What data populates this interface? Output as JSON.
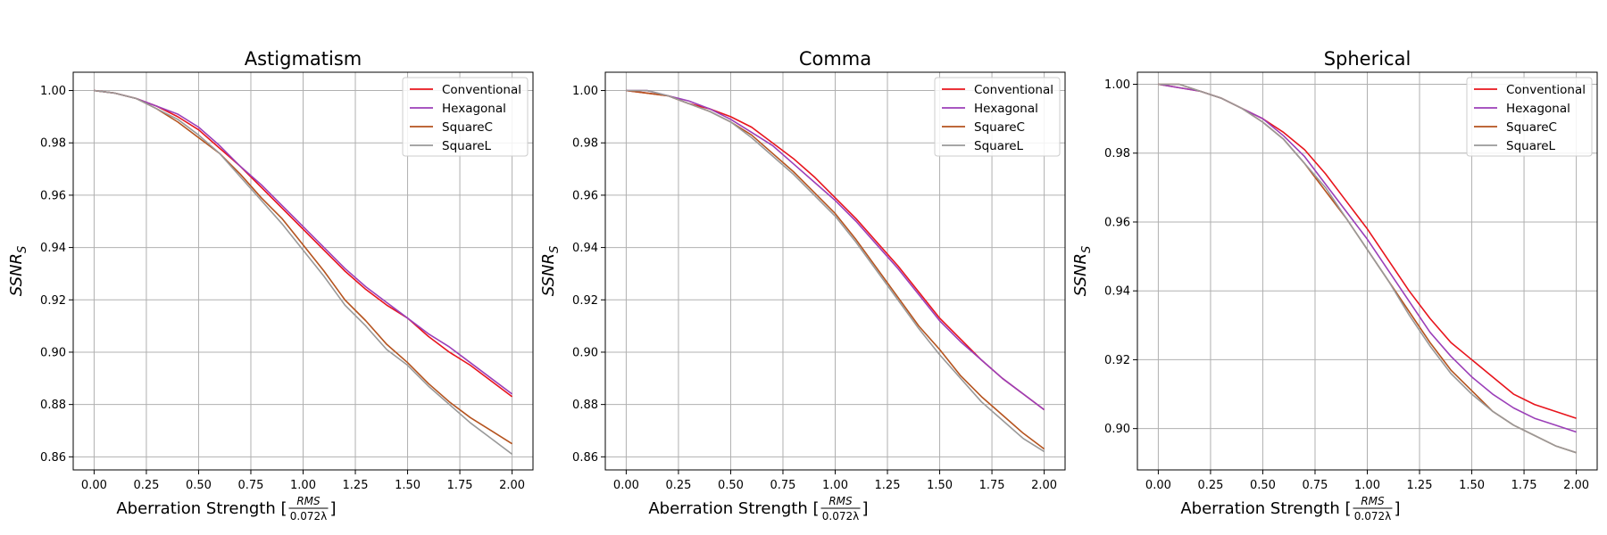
{
  "figure": {
    "xlabel_prefix": "Aberration Strength [",
    "xlabel_suffix": "]",
    "xlabel_frac_num": "RMS",
    "xlabel_frac_den": "0.072λ",
    "ylabel_main": "SSNR",
    "ylabel_sub": "S"
  },
  "colors": {
    "Conventional": "#e8141c",
    "Hexagonal": "#9b3fb8",
    "SquareC": "#b5531e",
    "SquareL": "#999999",
    "grid": "#b0b0b0",
    "axes": "#000000"
  },
  "chart_data": [
    {
      "type": "line",
      "title": "Astigmatism",
      "xlabel": "Aberration Strength [RMS / 0.072λ]",
      "ylabel": "SSNR_S",
      "xlim": [
        -0.1,
        2.1
      ],
      "ylim": [
        0.855,
        1.007
      ],
      "xticks": [
        "0.00",
        "0.25",
        "0.50",
        "0.75",
        "1.00",
        "1.25",
        "1.50",
        "1.75",
        "2.00"
      ],
      "yticks": [
        "0.86",
        "0.88",
        "0.90",
        "0.92",
        "0.94",
        "0.96",
        "0.98",
        "1.00"
      ],
      "grid": true,
      "legend_position": "top-right",
      "x": [
        0,
        0.1,
        0.2,
        0.3,
        0.4,
        0.5,
        0.6,
        0.7,
        0.8,
        0.9,
        1.0,
        1.1,
        1.2,
        1.3,
        1.4,
        1.5,
        1.6,
        1.7,
        1.8,
        1.9,
        2.0
      ],
      "series": [
        {
          "name": "Conventional",
          "values": [
            1.0,
            0.999,
            0.997,
            0.994,
            0.99,
            0.985,
            0.978,
            0.971,
            0.963,
            0.955,
            0.947,
            0.939,
            0.931,
            0.924,
            0.918,
            0.913,
            0.906,
            0.9,
            0.895,
            0.889,
            0.883
          ]
        },
        {
          "name": "Hexagonal",
          "values": [
            1.0,
            0.999,
            0.997,
            0.994,
            0.991,
            0.986,
            0.979,
            0.971,
            0.964,
            0.956,
            0.948,
            0.94,
            0.932,
            0.925,
            0.919,
            0.913,
            0.907,
            0.902,
            0.896,
            0.89,
            0.884
          ]
        },
        {
          "name": "SquareC",
          "values": [
            1.0,
            0.999,
            0.997,
            0.993,
            0.988,
            0.982,
            0.976,
            0.968,
            0.959,
            0.951,
            0.941,
            0.931,
            0.92,
            0.912,
            0.903,
            0.896,
            0.888,
            0.881,
            0.875,
            0.87,
            0.865
          ]
        },
        {
          "name": "SquareL",
          "values": [
            1.0,
            0.999,
            0.997,
            0.993,
            0.989,
            0.983,
            0.976,
            0.967,
            0.958,
            0.949,
            0.939,
            0.929,
            0.918,
            0.91,
            0.901,
            0.895,
            0.887,
            0.88,
            0.873,
            0.867,
            0.861
          ]
        }
      ]
    },
    {
      "type": "line",
      "title": "Comma",
      "xlabel": "Aberration Strength [RMS / 0.072λ]",
      "ylabel": "SSNR_S",
      "xlim": [
        -0.1,
        2.1
      ],
      "ylim": [
        0.855,
        1.007
      ],
      "xticks": [
        "0.00",
        "0.25",
        "0.50",
        "0.75",
        "1.00",
        "1.25",
        "1.50",
        "1.75",
        "2.00"
      ],
      "yticks": [
        "0.86",
        "0.88",
        "0.90",
        "0.92",
        "0.94",
        "0.96",
        "0.98",
        "1.00"
      ],
      "grid": true,
      "legend_position": "top-right",
      "x": [
        0,
        0.1,
        0.2,
        0.3,
        0.4,
        0.5,
        0.6,
        0.7,
        0.8,
        0.9,
        1.0,
        1.1,
        1.2,
        1.3,
        1.4,
        1.5,
        1.6,
        1.7,
        1.8,
        1.9,
        2.0
      ],
      "series": [
        {
          "name": "Conventional",
          "values": [
            1.0,
            0.999,
            0.998,
            0.995,
            0.993,
            0.99,
            0.986,
            0.98,
            0.974,
            0.967,
            0.959,
            0.951,
            0.942,
            0.933,
            0.923,
            0.913,
            0.905,
            0.897,
            0.89,
            0.884,
            0.878
          ]
        },
        {
          "name": "Hexagonal",
          "values": [
            1.0,
            1.0,
            0.998,
            0.996,
            0.993,
            0.989,
            0.984,
            0.979,
            0.972,
            0.965,
            0.958,
            0.95,
            0.941,
            0.932,
            0.922,
            0.912,
            0.904,
            0.897,
            0.89,
            0.884,
            0.878
          ]
        },
        {
          "name": "SquareC",
          "values": [
            1.0,
            0.999,
            0.998,
            0.995,
            0.992,
            0.988,
            0.983,
            0.976,
            0.969,
            0.961,
            0.953,
            0.943,
            0.932,
            0.921,
            0.91,
            0.901,
            0.891,
            0.883,
            0.876,
            0.869,
            0.863
          ]
        },
        {
          "name": "SquareL",
          "values": [
            1.0,
            1.0,
            0.998,
            0.995,
            0.992,
            0.988,
            0.982,
            0.975,
            0.968,
            0.96,
            0.952,
            0.942,
            0.931,
            0.92,
            0.909,
            0.899,
            0.89,
            0.881,
            0.874,
            0.867,
            0.862
          ]
        }
      ]
    },
    {
      "type": "line",
      "title": "Spherical",
      "xlabel": "Aberration Strength [RMS / 0.072λ]",
      "ylabel": "SSNR_S",
      "xlim": [
        -0.1,
        2.1
      ],
      "ylim": [
        0.888,
        1.0035
      ],
      "xticks": [
        "0.00",
        "0.25",
        "0.50",
        "0.75",
        "1.00",
        "1.25",
        "1.50",
        "1.75",
        "2.00"
      ],
      "yticks": [
        "0.90",
        "0.92",
        "0.94",
        "0.96",
        "0.98",
        "1.00"
      ],
      "grid": true,
      "legend_position": "top-right",
      "x": [
        0,
        0.1,
        0.2,
        0.3,
        0.4,
        0.5,
        0.6,
        0.7,
        0.8,
        0.9,
        1.0,
        1.1,
        1.2,
        1.3,
        1.4,
        1.5,
        1.6,
        1.7,
        1.8,
        1.9,
        2.0
      ],
      "series": [
        {
          "name": "Conventional",
          "values": [
            1.0,
            0.999,
            0.998,
            0.996,
            0.993,
            0.99,
            0.986,
            0.981,
            0.974,
            0.966,
            0.958,
            0.949,
            0.94,
            0.932,
            0.925,
            0.92,
            0.915,
            0.91,
            0.907,
            0.905,
            0.903
          ]
        },
        {
          "name": "Hexagonal",
          "values": [
            1.0,
            0.999,
            0.998,
            0.996,
            0.993,
            0.99,
            0.985,
            0.979,
            0.971,
            0.963,
            0.955,
            0.946,
            0.937,
            0.928,
            0.921,
            0.915,
            0.91,
            0.906,
            0.903,
            0.901,
            0.899
          ]
        },
        {
          "name": "SquareC",
          "values": [
            1.0,
            1.0,
            0.998,
            0.996,
            0.993,
            0.989,
            0.984,
            0.977,
            0.969,
            0.961,
            0.952,
            0.943,
            0.934,
            0.925,
            0.917,
            0.911,
            0.905,
            0.901,
            0.898,
            0.895,
            0.893
          ]
        },
        {
          "name": "SquareL",
          "values": [
            1.0,
            1.0,
            0.998,
            0.996,
            0.993,
            0.989,
            0.984,
            0.977,
            0.97,
            0.961,
            0.952,
            0.943,
            0.933,
            0.924,
            0.916,
            0.91,
            0.905,
            0.901,
            0.898,
            0.895,
            0.893
          ]
        }
      ]
    }
  ]
}
